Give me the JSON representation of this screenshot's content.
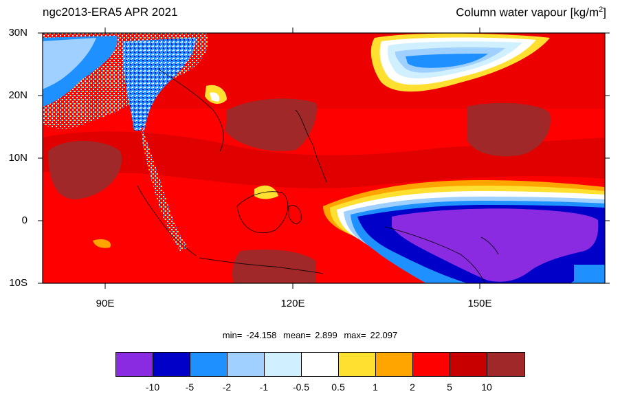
{
  "header": {
    "left_title": "ngc2013-ERA5  APR 2021",
    "right_title_main": "Column water vapour [kg/m",
    "right_title_sup": "2",
    "right_title_end": "]"
  },
  "axes": {
    "lat_ticks": [
      "30N",
      "20N",
      "10N",
      "0",
      "10S"
    ],
    "lon_ticks": [
      "90E",
      "120E",
      "150E"
    ],
    "lat_range": [
      -10,
      30
    ],
    "lon_range": [
      80,
      170
    ]
  },
  "stats": {
    "min_label": "min=",
    "min_value": "-24.158",
    "mean_label": "mean=",
    "mean_value": "2.899",
    "max_label": "max=",
    "max_value": "22.097"
  },
  "colorbar": {
    "colors": [
      "#8a2be2",
      "#0000c8",
      "#1e90ff",
      "#a0d0ff",
      "#d0f0ff",
      "#ffffff",
      "#ffe030",
      "#ffa500",
      "#ff0000",
      "#c80000",
      "#a02828"
    ],
    "labels": [
      "-10",
      "-5",
      "-2",
      "-1",
      "-0.5",
      "0.5",
      "1",
      "2",
      "5",
      "10"
    ]
  }
}
